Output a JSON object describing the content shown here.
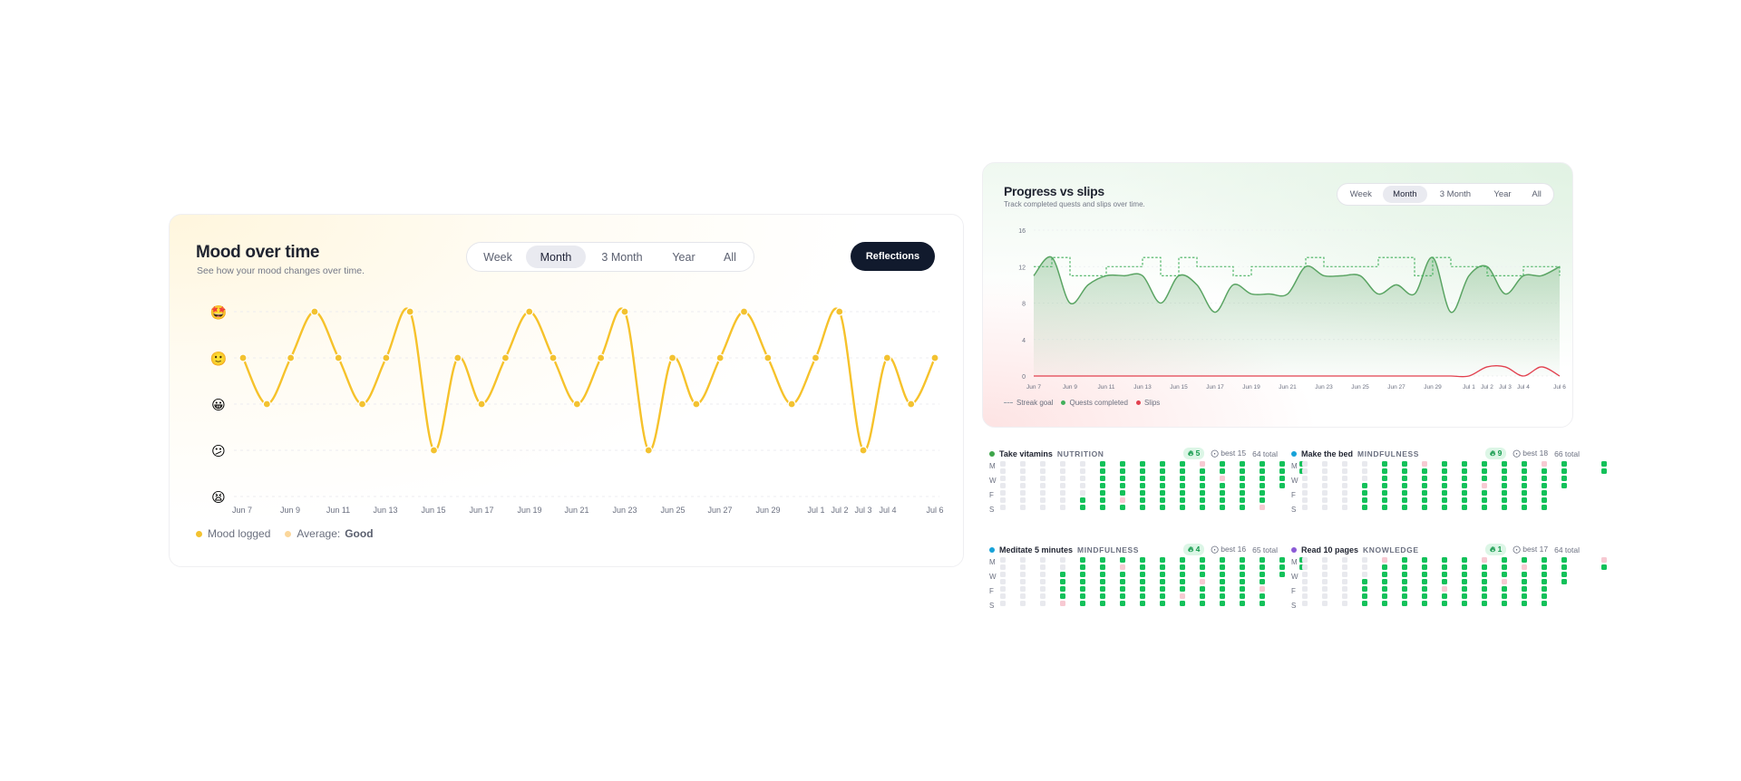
{
  "mood": {
    "title": "Mood over time",
    "subtitle": "See how your mood changes over time.",
    "ranges": [
      "Week",
      "Month",
      "3 Month",
      "Year",
      "All"
    ],
    "active_range": "Month",
    "reflections_label": "Reflections",
    "mood_levels": [
      "😫",
      "😕",
      "😀",
      "🙂",
      "🤩"
    ],
    "x_ticks": [
      "Jun 7",
      "Jun 9",
      "Jun 11",
      "Jun 13",
      "Jun 15",
      "Jun 17",
      "Jun 19",
      "Jun 21",
      "Jun 23",
      "Jun 25",
      "Jun 27",
      "Jun 29",
      "Jul 1",
      "Jul 2",
      "Jul 3",
      "Jul 4",
      "Jul 6"
    ],
    "legend_logged": "Mood logged",
    "legend_average_label": "Average:",
    "legend_average_value": "Good",
    "colors": {
      "line": "#f6c22b",
      "point": "#f3c230",
      "average": "#fbd79b"
    }
  },
  "progress": {
    "title": "Progress vs slips",
    "subtitle": "Track completed quests and slips over time.",
    "ranges": [
      "Week",
      "Month",
      "3 Month",
      "Year",
      "All"
    ],
    "active_range": "Month",
    "y_ticks": [
      "16",
      "12",
      "8",
      "4",
      "0"
    ],
    "x_ticks": [
      "Jun 7",
      "Jun 9",
      "Jun 11",
      "Jun 13",
      "Jun 15",
      "Jun 17",
      "Jun 19",
      "Jun 21",
      "Jun 23",
      "Jun 25",
      "Jun 27",
      "Jun 29",
      "Jul 1",
      "Jul 2",
      "Jul 3",
      "Jul 4",
      "Jul 6"
    ],
    "legend": [
      "Streak goal",
      "Quests completed",
      "Slips"
    ],
    "colors": {
      "goal": "#43b05c",
      "quests": "#5aa463",
      "slips": "#e2414f"
    }
  },
  "chart_data": [
    {
      "type": "line",
      "title": "Mood over time",
      "x": [
        "Jun 7",
        "Jun 8",
        "Jun 9",
        "Jun 10",
        "Jun 11",
        "Jun 12",
        "Jun 13",
        "Jun 14",
        "Jun 15",
        "Jun 16",
        "Jun 17",
        "Jun 18",
        "Jun 19",
        "Jun 20",
        "Jun 21",
        "Jun 22",
        "Jun 23",
        "Jun 24",
        "Jun 25",
        "Jun 26",
        "Jun 27",
        "Jun 28",
        "Jun 29",
        "Jun 30",
        "Jul 1",
        "Jul 2",
        "Jul 3",
        "Jul 4",
        "Jul 5",
        "Jul 6"
      ],
      "series": [
        {
          "name": "Mood logged",
          "values": [
            4,
            3,
            4,
            5,
            4,
            3,
            4,
            5,
            2,
            4,
            3,
            4,
            5,
            4,
            3,
            4,
            5,
            2,
            4,
            3,
            4,
            5,
            4,
            3,
            4,
            5,
            2,
            4,
            3,
            4
          ]
        }
      ],
      "y_categories": [
        "😫",
        "😕",
        "😀",
        "🙂",
        "🤩"
      ],
      "ylim": [
        1,
        5
      ],
      "grid": true,
      "legend": "bottom-left"
    },
    {
      "type": "line",
      "title": "Progress vs slips",
      "x": [
        "Jun 7",
        "Jun 8",
        "Jun 9",
        "Jun 10",
        "Jun 11",
        "Jun 12",
        "Jun 13",
        "Jun 14",
        "Jun 15",
        "Jun 16",
        "Jun 17",
        "Jun 18",
        "Jun 19",
        "Jun 20",
        "Jun 21",
        "Jun 22",
        "Jun 23",
        "Jun 24",
        "Jun 25",
        "Jun 26",
        "Jun 27",
        "Jun 28",
        "Jun 29",
        "Jun 30",
        "Jul 1",
        "Jul 2",
        "Jul 3",
        "Jul 4",
        "Jul 5",
        "Jul 6"
      ],
      "series": [
        {
          "name": "Quests completed",
          "values": [
            11,
            13,
            8,
            10,
            11,
            11,
            11,
            8,
            11,
            10,
            7,
            10,
            9,
            9,
            9,
            12,
            11,
            11,
            11,
            9,
            10,
            9,
            13,
            7,
            11,
            12,
            9,
            11,
            11,
            12
          ]
        },
        {
          "name": "Slips",
          "values": [
            0,
            0,
            0,
            0,
            0,
            0,
            0,
            0,
            0,
            0,
            0,
            0,
            0,
            0,
            0,
            0,
            0,
            0,
            0,
            0,
            0,
            0,
            0,
            0,
            0,
            1,
            1,
            0,
            1,
            0
          ]
        },
        {
          "name": "Streak goal",
          "values": [
            12,
            13,
            11,
            11,
            12,
            12,
            13,
            11,
            13,
            12,
            12,
            11,
            12,
            12,
            12,
            13,
            12,
            12,
            12,
            13,
            13,
            11,
            13,
            12,
            12,
            11,
            11,
            12,
            12,
            11
          ]
        }
      ],
      "ylim": [
        0,
        16
      ],
      "grid": true,
      "legend": "bottom-left"
    }
  ],
  "habits": [
    {
      "name": "Take vitamins",
      "category": "NUTRITION",
      "dot_color": "#3ea54a",
      "streak": "5",
      "best": "best 15",
      "total": "64 total",
      "weeks": [
        "0000000",
        "0000000",
        "0000000",
        "0000000",
        "0000011",
        "1111111",
        "1111121",
        "1111111",
        "1111111",
        "1111111",
        "2111111",
        "1121111",
        "1111111",
        "1111112",
        "1111",
        "11"
      ]
    },
    {
      "name": "Make the bed",
      "category": "MINDFULNESS",
      "dot_color": "#17a2d8",
      "streak": "9",
      "best": "best 18",
      "total": "66 total",
      "weeks": [
        "0000000",
        "0000000",
        "0000000",
        "0001111",
        "1111111",
        "1111111",
        "2111111",
        "1111111",
        "1111111",
        "1112111",
        "1111111",
        "1111111",
        "2111111",
        "1111",
        "",
        "11"
      ]
    },
    {
      "name": "Meditate 5 minutes",
      "category": "MINDFULNESS",
      "dot_color": "#17a2d8",
      "streak": "4",
      "best": "best 16",
      "total": "65 total",
      "weeks": [
        "0000000",
        "0000000",
        "0000000",
        "0011112",
        "1111111",
        "1111111",
        "1211111",
        "1111111",
        "1111111",
        "1111121",
        "1112111",
        "1111111",
        "1111111",
        "1111211",
        "111",
        "11"
      ]
    },
    {
      "name": "Read 10 pages",
      "category": "KNOWLEDGE",
      "dot_color": "#8b5bd6",
      "streak": "1",
      "best": "best 17",
      "total": "64 total",
      "weeks": [
        "0000000",
        "0000000",
        "0000000",
        "0001111",
        "2111111",
        "1111111",
        "1111111",
        "1111211",
        "1111111",
        "2111111",
        "1112111",
        "1211111",
        "1111111",
        "1111",
        "",
        "21"
      ]
    }
  ]
}
